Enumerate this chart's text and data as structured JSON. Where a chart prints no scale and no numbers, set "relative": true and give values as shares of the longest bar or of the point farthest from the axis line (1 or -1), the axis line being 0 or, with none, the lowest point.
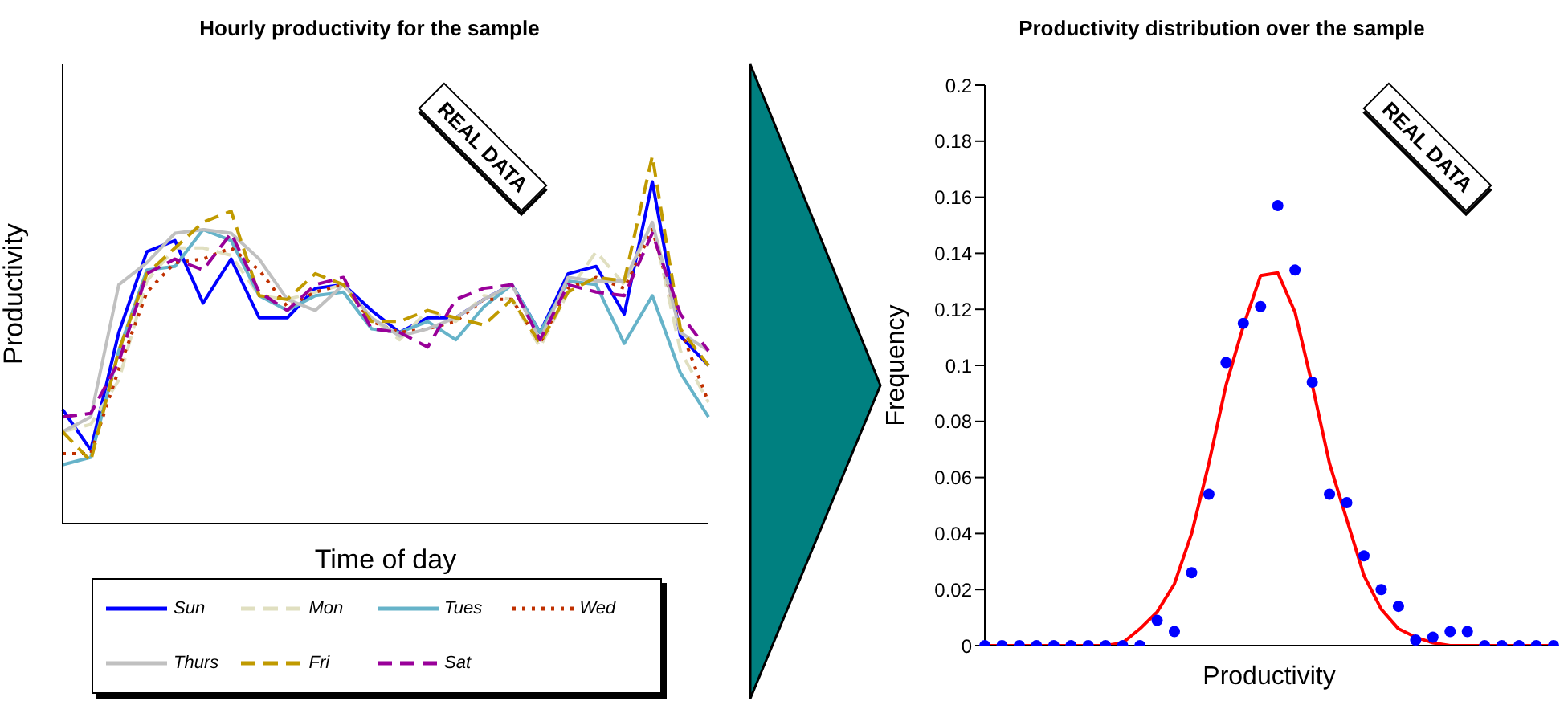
{
  "chart_data": [
    {
      "type": "line",
      "title": "Hourly productivity for the sample",
      "xlabel": "Time of day",
      "ylabel": "Productivity",
      "relative": true,
      "tick_labels": false,
      "legend": "bottom",
      "annotations": [
        "REAL DATA"
      ],
      "categories": [
        null,
        null,
        null,
        null,
        null,
        null,
        null,
        null,
        null,
        null,
        null,
        null,
        null,
        null,
        null,
        null,
        null,
        null,
        null,
        null,
        null,
        null,
        null,
        null
      ],
      "series": [
        {
          "name": "Sun",
          "color": "#0000ff",
          "line_style": "solid",
          "values": [
            0.31,
            0.2,
            0.52,
            0.74,
            0.77,
            0.6,
            0.72,
            0.56,
            0.56,
            0.64,
            0.65,
            0.58,
            0.52,
            0.56,
            0.56,
            0.61,
            0.65,
            0.52,
            0.68,
            0.7,
            0.57,
            0.93,
            0.51,
            0.43
          ]
        },
        {
          "name": "Mon",
          "color": "#e0dfc0",
          "line_style": "dashed",
          "values": [
            0.25,
            0.27,
            0.39,
            0.66,
            0.75,
            0.75,
            0.73,
            0.62,
            0.61,
            0.63,
            0.65,
            0.56,
            0.5,
            0.58,
            0.55,
            0.62,
            0.61,
            0.48,
            0.63,
            0.74,
            0.65,
            0.82,
            0.47,
            0.33
          ]
        },
        {
          "name": "Tues",
          "color": "#66b3c9",
          "line_style": "solid",
          "values": [
            0.16,
            0.18,
            0.47,
            0.69,
            0.7,
            0.8,
            0.77,
            0.62,
            0.58,
            0.62,
            0.63,
            0.53,
            0.52,
            0.55,
            0.5,
            0.59,
            0.65,
            0.52,
            0.66,
            0.65,
            0.49,
            0.62,
            0.41,
            0.29
          ]
        },
        {
          "name": "Wed",
          "color": "#c03000",
          "line_style": "dotted",
          "values": [
            0.19,
            0.19,
            0.42,
            0.63,
            0.71,
            0.72,
            0.75,
            0.69,
            0.59,
            0.63,
            0.65,
            0.55,
            0.52,
            0.53,
            0.55,
            0.61,
            0.61,
            0.49,
            0.64,
            0.67,
            0.64,
            0.8,
            0.53,
            0.33
          ]
        },
        {
          "name": "Thurs",
          "color": "#c0c0c0",
          "line_style": "solid",
          "values": [
            0.25,
            0.29,
            0.65,
            0.71,
            0.79,
            0.8,
            0.79,
            0.72,
            0.61,
            0.58,
            0.65,
            0.56,
            0.51,
            0.53,
            0.56,
            0.61,
            0.65,
            0.5,
            0.67,
            0.66,
            0.66,
            0.82,
            0.52,
            0.47
          ]
        },
        {
          "name": "Fri",
          "color": "#c09a00",
          "line_style": "dashed",
          "values": [
            0.25,
            0.17,
            0.47,
            0.68,
            0.75,
            0.82,
            0.85,
            0.62,
            0.61,
            0.68,
            0.65,
            0.55,
            0.55,
            0.58,
            0.56,
            0.54,
            0.61,
            0.49,
            0.63,
            0.67,
            0.66,
            1.0,
            0.53,
            0.43
          ]
        },
        {
          "name": "Sat",
          "color": "#990099",
          "line_style": "dashed",
          "values": [
            0.29,
            0.3,
            0.44,
            0.68,
            0.72,
            0.69,
            0.79,
            0.63,
            0.58,
            0.65,
            0.67,
            0.53,
            0.52,
            0.48,
            0.61,
            0.64,
            0.65,
            0.5,
            0.65,
            0.63,
            0.62,
            0.79,
            0.57,
            0.47
          ]
        }
      ]
    },
    {
      "type": "scatter",
      "title": "Productivity distribution over the sample",
      "xlabel": "Productivity",
      "ylabel": "Frequency",
      "tick_labels": "y",
      "annotations": [
        "REAL DATA"
      ],
      "categories": [
        null,
        null,
        null,
        null,
        null,
        null,
        null,
        null,
        null,
        null,
        null,
        null,
        null,
        null,
        null,
        null,
        null,
        null,
        null,
        null,
        null,
        null,
        null,
        null,
        null,
        null,
        null,
        null,
        null,
        null,
        null,
        null,
        null,
        null
      ],
      "ylim": [
        0,
        0.2
      ],
      "yticks": [
        0,
        0.02,
        0.04,
        0.06,
        0.08,
        0.1,
        0.12,
        0.14,
        0.16,
        0.18,
        0.2
      ],
      "series": [
        {
          "type": "scatter",
          "color": "#0000ff",
          "marker": "circle",
          "values": [
            0,
            0,
            0,
            0,
            0,
            0,
            0,
            0,
            0,
            0,
            0.009,
            0.005,
            0.026,
            0.054,
            0.101,
            0.115,
            0.121,
            0.157,
            0.134,
            0.094,
            0.054,
            0.051,
            0.032,
            0.02,
            0.014,
            0.002,
            0.003,
            0.005,
            0.005,
            0,
            0,
            0,
            0,
            0
          ]
        },
        {
          "type": "line",
          "color": "#ff0000",
          "values": [
            0,
            0,
            0,
            0,
            0,
            0,
            0,
            0,
            0.001,
            0.006,
            0.012,
            0.022,
            0.04,
            0.065,
            0.093,
            0.114,
            0.132,
            0.133,
            0.119,
            0.093,
            0.065,
            0.045,
            0.025,
            0.013,
            0.006,
            0.003,
            0.001,
            0,
            0,
            0,
            0,
            0,
            0,
            0
          ]
        }
      ]
    }
  ]
}
